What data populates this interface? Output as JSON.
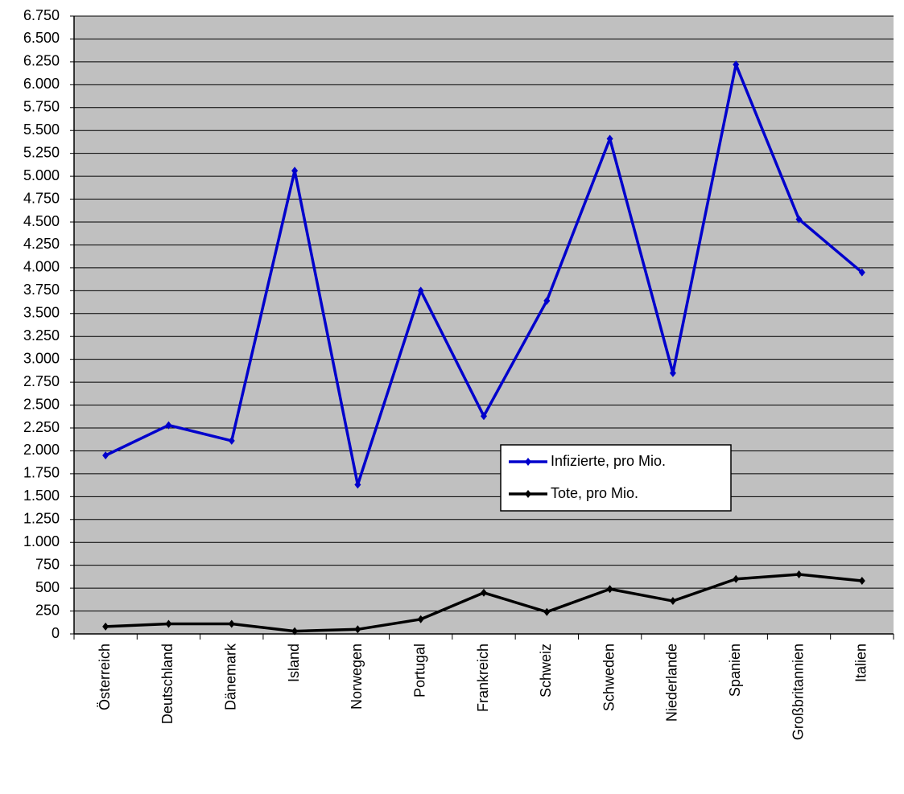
{
  "chart_data": {
    "type": "line",
    "categories": [
      "Österreich",
      "Deutschland",
      "Dänemark",
      "Island",
      "Norwegen",
      "Portugal",
      "Frankreich",
      "Schweiz",
      "Schweden",
      "Niederlande",
      "Spanien",
      "Großbritannien",
      "Italien"
    ],
    "series": [
      {
        "name": "Infizierte, pro Mio.",
        "color": "#0000cc",
        "values": [
          1950,
          2280,
          2110,
          5060,
          1630,
          3750,
          2380,
          3640,
          5410,
          2850,
          6220,
          4530,
          3950
        ]
      },
      {
        "name": "Tote, pro Mio.",
        "color": "#000000",
        "values": [
          80,
          110,
          110,
          30,
          50,
          160,
          450,
          240,
          490,
          360,
          600,
          650,
          580
        ]
      }
    ],
    "ylim": [
      0,
      6750
    ],
    "yticks": [
      0,
      250,
      500,
      750,
      {
        "value": 1000,
        "label": "1.000"
      },
      {
        "value": 1250,
        "label": "1.250"
      },
      {
        "value": 1500,
        "label": "1.500"
      },
      {
        "value": 1750,
        "label": "1.750"
      },
      {
        "value": 2000,
        "label": "2.000"
      },
      {
        "value": 2250,
        "label": "2.250"
      },
      {
        "value": 2500,
        "label": "2.500"
      },
      {
        "value": 2750,
        "label": "2.750"
      },
      {
        "value": 3000,
        "label": "3.000"
      },
      {
        "value": 3250,
        "label": "3.250"
      },
      {
        "value": 3500,
        "label": "3.500"
      },
      {
        "value": 3750,
        "label": "3.750"
      },
      {
        "value": 4000,
        "label": "4.000"
      },
      {
        "value": 4250,
        "label": "4.250"
      },
      {
        "value": 4500,
        "label": "4.500"
      },
      {
        "value": 4750,
        "label": "4.750"
      },
      {
        "value": 5000,
        "label": "5.000"
      },
      {
        "value": 5250,
        "label": "5.250"
      },
      {
        "value": 5500,
        "label": "5.500"
      },
      {
        "value": 5750,
        "label": "5.750"
      },
      {
        "value": 6000,
        "label": "6.000"
      },
      {
        "value": 6250,
        "label": "6.250"
      },
      {
        "value": 6500,
        "label": "6.500"
      },
      {
        "value": 6750,
        "label": "6.750"
      }
    ],
    "grid": true
  }
}
